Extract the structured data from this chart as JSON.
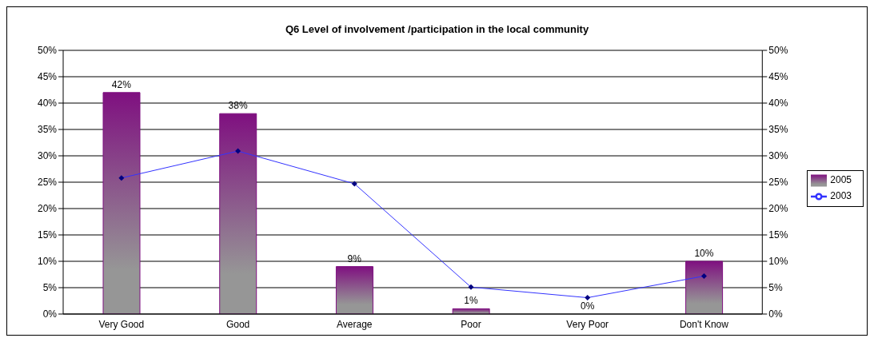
{
  "chart_data": {
    "type": "bar",
    "title": "Q6 Level of involvement /participation in the local community",
    "categories": [
      "Very Good",
      "Good",
      "Average",
      "Poor",
      "Very Poor",
      "Don't Know"
    ],
    "series": [
      {
        "name": "2005",
        "color": "#7f1080",
        "values": [
          42,
          38,
          9,
          1,
          0,
          10
        ],
        "value_labels": [
          "42%",
          "38%",
          "9%",
          "1%",
          "0%",
          "10%"
        ]
      },
      {
        "name": "2003",
        "type": "line",
        "color": "#3333ff",
        "values": [
          25.8,
          30.9,
          24.7,
          5.1,
          3.1,
          7.2
        ],
        "marker": "diamond",
        "line_style": "solid"
      }
    ],
    "ylim": [
      0,
      50
    ],
    "yticks": [
      {
        "value": 0,
        "label": "0%"
      },
      {
        "value": 5,
        "label": "5%"
      },
      {
        "value": 10,
        "label": "10%"
      },
      {
        "value": 15,
        "label": "15%"
      },
      {
        "value": 20,
        "label": "20%"
      },
      {
        "value": 25,
        "label": "25%"
      },
      {
        "value": 30,
        "label": "30%"
      },
      {
        "value": 35,
        "label": "35%"
      },
      {
        "value": 40,
        "label": "40%"
      },
      {
        "value": 45,
        "label": "45%"
      },
      {
        "value": 50,
        "label": "50%"
      }
    ],
    "y2lim": [
      0,
      50
    ],
    "y2ticks": [
      {
        "value": 0,
        "label": "0%"
      },
      {
        "value": 5,
        "label": "5%"
      },
      {
        "value": 10,
        "label": "10%"
      },
      {
        "value": 15,
        "label": "15%"
      },
      {
        "value": 20,
        "label": "20%"
      },
      {
        "value": 25,
        "label": "25%"
      },
      {
        "value": 30,
        "label": "30%"
      },
      {
        "value": 35,
        "label": "35%"
      },
      {
        "value": 40,
        "label": "40%"
      },
      {
        "value": 45,
        "label": "45%"
      },
      {
        "value": 50,
        "label": "50%"
      }
    ],
    "grid": "y",
    "legend": "right"
  }
}
